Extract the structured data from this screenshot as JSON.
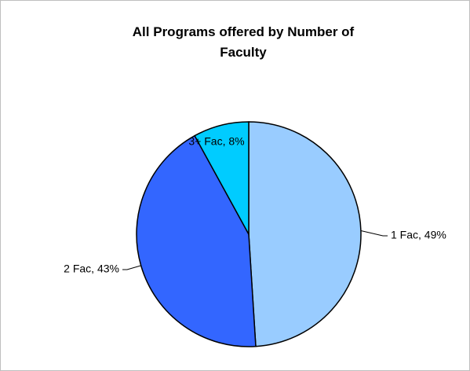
{
  "chart_data": {
    "type": "pie",
    "title": "All Programs offered by Number of Faculty",
    "categories": [
      "1 Fac",
      "2 Fac",
      "3+ Fac"
    ],
    "values": [
      49,
      43,
      8
    ],
    "value_labels": [
      "1 Fac, 49%",
      "2 Fac, 43%",
      "3+ Fac, 8%"
    ],
    "colors": [
      "#99ccff",
      "#3366ff",
      "#00ccff"
    ]
  }
}
